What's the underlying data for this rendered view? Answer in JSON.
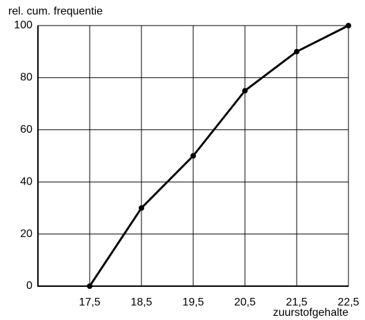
{
  "chart_data": {
    "type": "line",
    "ylabel": "rel. cum. frequentie",
    "xlabel": "zuurstofgehalte",
    "x": [
      17.5,
      18.5,
      19.5,
      20.5,
      21.5,
      22.5
    ],
    "series": [
      {
        "color": "#000000",
        "values": [
          0,
          30,
          50,
          75,
          90,
          100
        ]
      }
    ],
    "xlim": [
      16.5,
      22.5
    ],
    "xticks": [
      {
        "value": 17.5,
        "label": "17,5"
      },
      {
        "value": 18.5,
        "label": "18,5"
      },
      {
        "value": 19.5,
        "label": "19,5"
      },
      {
        "value": 20.5,
        "label": "20,5"
      },
      {
        "value": 21.5,
        "label": "21,5"
      },
      {
        "value": 22.5,
        "label": "22,5"
      }
    ],
    "ylim": [
      0,
      100
    ],
    "yticks": [
      0,
      20,
      40,
      60,
      80,
      100
    ],
    "grid": true
  }
}
